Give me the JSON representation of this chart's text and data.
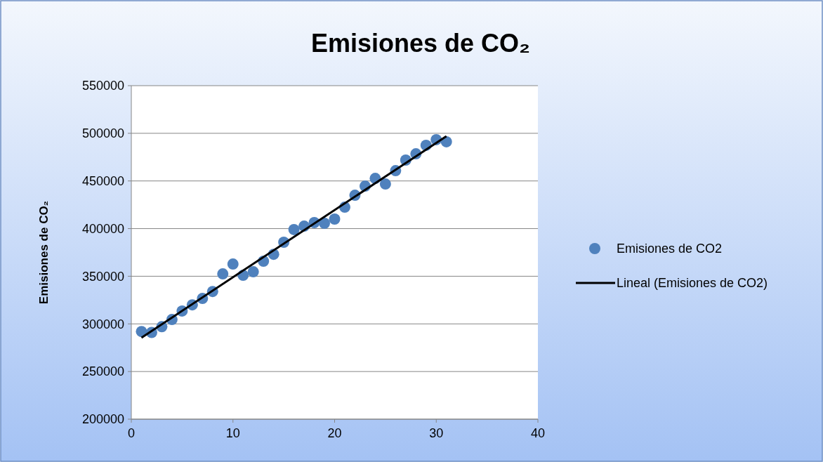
{
  "chart_data": {
    "type": "scatter",
    "title": "Emisiones de CO₂",
    "ylabel": "Emisiones de CO₂",
    "xlim": [
      0,
      40
    ],
    "xticks": [
      0,
      10,
      20,
      30,
      40
    ],
    "ylim": [
      200000,
      550000
    ],
    "yticks": [
      200000,
      250000,
      300000,
      350000,
      400000,
      450000,
      500000,
      550000
    ],
    "grid": "y",
    "legend": "right",
    "marker": "circle",
    "series": [
      {
        "name": "Emisiones de CO2",
        "color": "#4f81bd",
        "x": [
          1,
          2,
          3,
          4,
          5,
          6,
          7,
          8,
          9,
          10,
          11,
          12,
          13,
          14,
          15,
          16,
          17,
          18,
          19,
          20,
          21,
          22,
          23,
          24,
          25,
          26,
          27,
          28,
          29,
          30,
          31
        ],
        "values": [
          292000,
          291000,
          297000,
          304600,
          313500,
          320000,
          326700,
          334000,
          352500,
          362800,
          351000,
          354700,
          365800,
          373000,
          385700,
          399000,
          402600,
          406300,
          405600,
          410000,
          422500,
          435000,
          444600,
          452700,
          446800,
          460800,
          471900,
          478500,
          487400,
          493300,
          491100
        ]
      },
      {
        "name": "Lineal (Emisiones de CO2)",
        "type": "line",
        "color": "#000000",
        "x": [
          1,
          31
        ],
        "values": [
          285500,
          497000
        ],
        "marker": "none",
        "line_style": "solid"
      }
    ]
  }
}
